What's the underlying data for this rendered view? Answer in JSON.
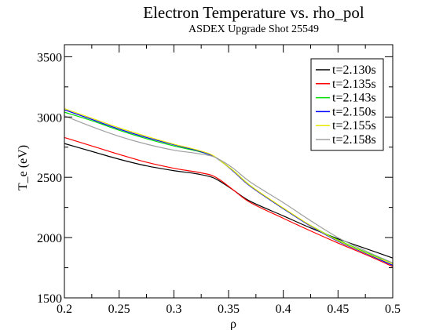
{
  "chart_data": {
    "type": "line",
    "title": "Electron Temperature vs. rho_pol",
    "subtitle": "ASDEX Upgrade Shot 25549",
    "xlabel": "ρ",
    "ylabel": "T_e (eV)",
    "xlim": [
      0.2,
      0.5
    ],
    "ylim": [
      1500,
      3600
    ],
    "xticks": [
      0.2,
      0.25,
      0.3,
      0.35,
      0.4,
      0.45,
      0.5
    ],
    "xtick_labels": [
      "0.2",
      "0.25",
      "0.3",
      "0.35",
      "0.4",
      "0.45",
      "0.5"
    ],
    "yticks": [
      1500,
      2000,
      2500,
      3000,
      3500
    ],
    "ytick_labels": [
      "1500",
      "2000",
      "2500",
      "3000",
      "3500"
    ],
    "grid": false,
    "legend_position": "top-right",
    "x": [
      0.2,
      0.225,
      0.25,
      0.275,
      0.3,
      0.32,
      0.335,
      0.345,
      0.355,
      0.37,
      0.4,
      0.425,
      0.45,
      0.475,
      0.5
    ],
    "series": [
      {
        "name": "t=2.130s",
        "color": "#000000",
        "values": [
          2780,
          2715,
          2650,
          2595,
          2555,
          2530,
          2500,
          2450,
          2390,
          2300,
          2180,
          2080,
          1990,
          1910,
          1830
        ]
      },
      {
        "name": "t=2.135s",
        "color": "#ff0000",
        "values": [
          2830,
          2760,
          2690,
          2625,
          2575,
          2545,
          2515,
          2460,
          2390,
          2290,
          2160,
          2055,
          1955,
          1860,
          1760
        ]
      },
      {
        "name": "t=2.143s",
        "color": "#00dd00",
        "values": [
          3040,
          2970,
          2890,
          2820,
          2760,
          2720,
          2680,
          2620,
          2550,
          2430,
          2240,
          2100,
          1980,
          1880,
          1790
        ]
      },
      {
        "name": "t=2.150s",
        "color": "#0000ff",
        "values": [
          3060,
          2980,
          2900,
          2830,
          2770,
          2725,
          2680,
          2620,
          2545,
          2425,
          2240,
          2095,
          1970,
          1870,
          1770
        ]
      },
      {
        "name": "t=2.155s",
        "color": "#e8e800",
        "values": [
          3070,
          2990,
          2910,
          2840,
          2775,
          2730,
          2685,
          2620,
          2550,
          2430,
          2245,
          2100,
          1975,
          1875,
          1780
        ]
      },
      {
        "name": "t=2.158s",
        "color": "#a0a0a0",
        "values": [
          3010,
          2920,
          2840,
          2775,
          2725,
          2700,
          2675,
          2630,
          2570,
          2460,
          2290,
          2140,
          2000,
          1890,
          1790
        ]
      }
    ]
  }
}
